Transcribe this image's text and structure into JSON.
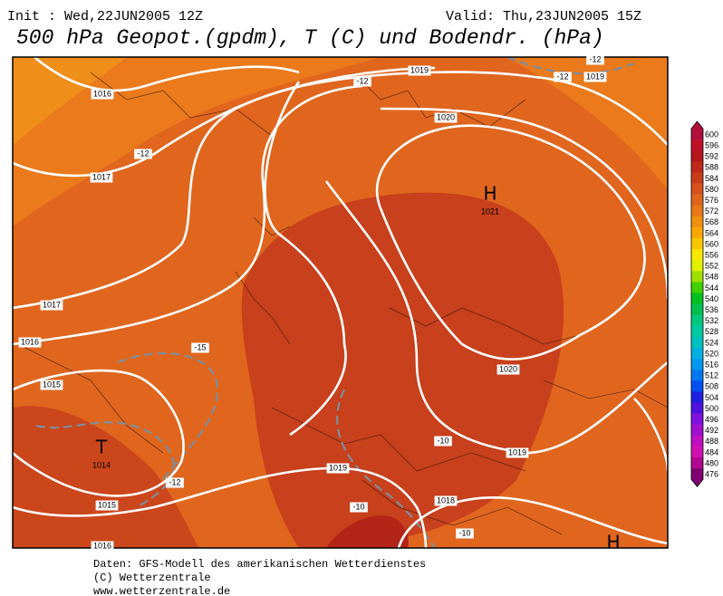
{
  "header": {
    "init": "Init : Wed,22JUN2005 12Z",
    "valid": "Valid: Thu,23JUN2005 15Z",
    "title": "500 hPa Geopot.(gpdm), T (C) und Bodendr. (hPa)"
  },
  "map": {
    "isobar_labels": [
      1016,
      1017,
      1019,
      1019,
      1020,
      1017,
      1016,
      1015,
      1015,
      1016,
      1020,
      1019,
      1019,
      1018
    ],
    "temperature_labels": [
      -12,
      -12,
      -12,
      -12,
      -15,
      -12,
      -10,
      -10,
      -10
    ],
    "pressure_centers": [
      {
        "symbol": "H",
        "value": 1021
      },
      {
        "symbol": "T",
        "value": 1014
      },
      {
        "symbol": "H"
      }
    ]
  },
  "legend": [
    {
      "value": 600,
      "color": "#b0103c"
    },
    {
      "value": 596,
      "color": "#c01028"
    },
    {
      "value": 592,
      "color": "#b4161a"
    },
    {
      "value": 588,
      "color": "#c0281a"
    },
    {
      "value": 584,
      "color": "#c83c1c"
    },
    {
      "value": 580,
      "color": "#d8501c"
    },
    {
      "value": 576,
      "color": "#e0641c"
    },
    {
      "value": 572,
      "color": "#e87818"
    },
    {
      "value": 568,
      "color": "#f09010"
    },
    {
      "value": 564,
      "color": "#f8a800"
    },
    {
      "value": 560,
      "color": "#f8c800"
    },
    {
      "value": 556,
      "color": "#f8e800"
    },
    {
      "value": 552,
      "color": "#e0f000"
    },
    {
      "value": 548,
      "color": "#a0e000"
    },
    {
      "value": 544,
      "color": "#40d000"
    },
    {
      "value": 540,
      "color": "#00c020"
    },
    {
      "value": 536,
      "color": "#00c050"
    },
    {
      "value": 532,
      "color": "#00c880"
    },
    {
      "value": 528,
      "color": "#00c8a0"
    },
    {
      "value": 524,
      "color": "#00c0c0"
    },
    {
      "value": 520,
      "color": "#00b0e0"
    },
    {
      "value": 516,
      "color": "#0098f0"
    },
    {
      "value": 512,
      "color": "#0078f0"
    },
    {
      "value": 508,
      "color": "#0050f0"
    },
    {
      "value": 504,
      "color": "#2020e0"
    },
    {
      "value": 500,
      "color": "#5010e0"
    },
    {
      "value": 496,
      "color": "#8010e0"
    },
    {
      "value": 492,
      "color": "#a010d0"
    },
    {
      "value": 488,
      "color": "#c010c0"
    },
    {
      "value": 484,
      "color": "#d010b0"
    },
    {
      "value": 480,
      "color": "#b00890"
    },
    {
      "value": 476,
      "color": "#800070"
    }
  ],
  "footer": [
    "Daten: GFS-Modell des amerikanischen Wetterdienstes",
    "(C) Wetterzentrale",
    "www.wetterzentrale.de"
  ]
}
